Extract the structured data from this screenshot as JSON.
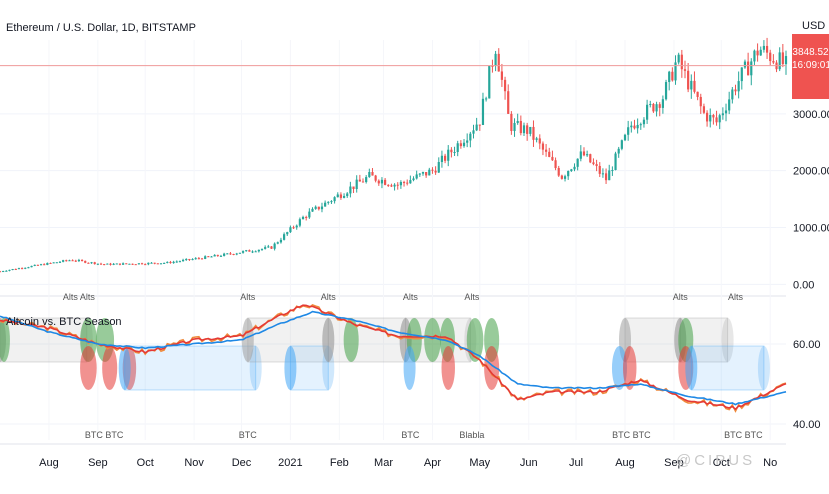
{
  "chart_title": "Ethereum / U.S. Dollar, 1D, BITSTAMP",
  "currency": "USD",
  "last_price": "3848.52",
  "countdown": "16:09:01",
  "watermark": "@CIPUS",
  "indicator_title": "Altcoin vs. BTC Season",
  "colors": {
    "up": "#26a69a",
    "down": "#ef5350",
    "price_line": "#ef9a9a",
    "alt_fill": "#43a047",
    "alt_red": "#e53935",
    "btc_fill": "#42a5f5",
    "neutral": "#9e9e9e",
    "line_blue": "#1e88e5",
    "line_red": "#e53935",
    "line_orange": "#ef8a3c"
  },
  "chart_data": [
    {
      "type": "candlestick",
      "title": "Ethereum / U.S. Dollar, 1D, BITSTAMP",
      "ylim": [
        -100,
        4300
      ],
      "y_ticks": [
        "0.00",
        "1000.00",
        "2000.00",
        "3000.00"
      ],
      "y_tick_values": [
        0,
        1000,
        2000,
        3000
      ],
      "x_ticks": [
        "Aug",
        "Sep",
        "Oct",
        "Nov",
        "Dec",
        "2021",
        "Feb",
        "Mar",
        "Apr",
        "May",
        "Jun",
        "Jul",
        "Aug",
        "Sep",
        "Oct",
        "No"
      ],
      "x_tick_dates": [
        "2020-08-01",
        "2020-09-01",
        "2020-10-01",
        "2020-11-01",
        "2020-12-01",
        "2021-01-01",
        "2021-02-01",
        "2021-03-01",
        "2021-04-01",
        "2021-05-01",
        "2021-06-01",
        "2021-07-01",
        "2021-08-01",
        "2021-09-01",
        "2021-10-01",
        "2021-11-01"
      ],
      "x_range": [
        "2020-07-01",
        "2021-11-11"
      ],
      "price_anchors": [
        {
          "date": "2020-07-01",
          "close": 230
        },
        {
          "date": "2020-08-15",
          "close": 430
        },
        {
          "date": "2020-09-05",
          "close": 350
        },
        {
          "date": "2020-10-15",
          "close": 380
        },
        {
          "date": "2020-11-20",
          "close": 520
        },
        {
          "date": "2020-12-20",
          "close": 650
        },
        {
          "date": "2021-01-10",
          "close": 1200
        },
        {
          "date": "2021-02-20",
          "close": 1900
        },
        {
          "date": "2021-03-10",
          "close": 1750
        },
        {
          "date": "2021-04-01",
          "close": 2000
        },
        {
          "date": "2021-04-15",
          "close": 2400
        },
        {
          "date": "2021-05-01",
          "close": 2900
        },
        {
          "date": "2021-05-11",
          "close": 4200
        },
        {
          "date": "2021-05-20",
          "close": 2800
        },
        {
          "date": "2021-06-01",
          "close": 2700
        },
        {
          "date": "2021-06-22",
          "close": 1900
        },
        {
          "date": "2021-07-05",
          "close": 2300
        },
        {
          "date": "2021-07-20",
          "close": 1850
        },
        {
          "date": "2021-08-05",
          "close": 2800
        },
        {
          "date": "2021-08-25",
          "close": 3300
        },
        {
          "date": "2021-09-03",
          "close": 3950
        },
        {
          "date": "2021-09-20",
          "close": 3000
        },
        {
          "date": "2021-09-28",
          "close": 2850
        },
        {
          "date": "2021-10-10",
          "close": 3500
        },
        {
          "date": "2021-10-25",
          "close": 4150
        },
        {
          "date": "2021-11-11",
          "close": 3848.52
        }
      ],
      "last_price": 3848.52,
      "top_labels": [
        "Alts Alts",
        "Alts",
        "Alts",
        "Alts",
        "Alts",
        "Alts",
        "Alts"
      ],
      "top_label_dates": [
        "2020-08-20",
        "2020-12-05",
        "2021-01-25",
        "2021-03-18",
        "2021-04-26",
        "2021-09-05",
        "2021-10-10"
      ]
    },
    {
      "type": "line",
      "title": "Altcoin vs. BTC Season",
      "ylim": [
        36,
        71
      ],
      "y_ticks": [
        "40.00",
        "60.00"
      ],
      "y_tick_values": [
        40,
        60
      ],
      "series": [],
      "blue_anchors": [
        {
          "date": "2020-07-01",
          "value": 67
        },
        {
          "date": "2020-08-01",
          "value": 63
        },
        {
          "date": "2020-09-01",
          "value": 60
        },
        {
          "date": "2020-10-01",
          "value": 59
        },
        {
          "date": "2020-11-01",
          "value": 60
        },
        {
          "date": "2020-12-01",
          "value": 61
        },
        {
          "date": "2020-12-25",
          "value": 65
        },
        {
          "date": "2021-01-15",
          "value": 68
        },
        {
          "date": "2021-02-10",
          "value": 66
        },
        {
          "date": "2021-03-10",
          "value": 63
        },
        {
          "date": "2021-04-10",
          "value": 61
        },
        {
          "date": "2021-05-01",
          "value": 57
        },
        {
          "date": "2021-05-25",
          "value": 50
        },
        {
          "date": "2021-06-15",
          "value": 49
        },
        {
          "date": "2021-07-15",
          "value": 49
        },
        {
          "date": "2021-08-10",
          "value": 50
        },
        {
          "date": "2021-09-10",
          "value": 47
        },
        {
          "date": "2021-10-10",
          "value": 45
        },
        {
          "date": "2021-11-11",
          "value": 48
        }
      ],
      "red_anchors": [
        {
          "date": "2020-07-01",
          "value": 66
        },
        {
          "date": "2020-08-01",
          "value": 64
        },
        {
          "date": "2020-09-01",
          "value": 60
        },
        {
          "date": "2020-10-01",
          "value": 58
        },
        {
          "date": "2020-11-01",
          "value": 61
        },
        {
          "date": "2020-12-01",
          "value": 62
        },
        {
          "date": "2020-12-25",
          "value": 67
        },
        {
          "date": "2021-01-10",
          "value": 70
        },
        {
          "date": "2021-02-10",
          "value": 65
        },
        {
          "date": "2021-03-10",
          "value": 62
        },
        {
          "date": "2021-04-10",
          "value": 62
        },
        {
          "date": "2021-05-01",
          "value": 56
        },
        {
          "date": "2021-05-25",
          "value": 46
        },
        {
          "date": "2021-06-15",
          "value": 48
        },
        {
          "date": "2021-07-15",
          "value": 48
        },
        {
          "date": "2021-08-10",
          "value": 51
        },
        {
          "date": "2021-09-10",
          "value": 46
        },
        {
          "date": "2021-10-10",
          "value": 44
        },
        {
          "date": "2021-11-11",
          "value": 50
        }
      ],
      "season_zones": [
        {
          "kind": "neutral",
          "start": "2020-07-01",
          "end": "2020-08-25",
          "level": "upper"
        },
        {
          "kind": "alt",
          "start": "2020-07-01",
          "end": "2020-07-06",
          "level": "upper"
        },
        {
          "kind": "alt",
          "start": "2020-08-22",
          "end": "2020-08-30",
          "level": "upper"
        },
        {
          "kind": "alt",
          "start": "2020-09-01",
          "end": "2020-09-10",
          "level": "upper"
        },
        {
          "kind": "altred",
          "start": "2020-08-22",
          "end": "2020-08-30",
          "level": "lower"
        },
        {
          "kind": "altred",
          "start": "2020-09-05",
          "end": "2020-09-12",
          "level": "lower"
        },
        {
          "kind": "altred",
          "start": "2020-09-18",
          "end": "2020-09-24",
          "level": "lower"
        },
        {
          "kind": "btc",
          "start": "2020-09-18",
          "end": "2020-12-10",
          "level": "lower"
        },
        {
          "kind": "neutral",
          "start": "2020-12-05",
          "end": "2021-01-25",
          "level": "upper"
        },
        {
          "kind": "btc",
          "start": "2021-01-01",
          "end": "2021-01-25",
          "level": "lower"
        },
        {
          "kind": "neutral",
          "start": "2021-01-25",
          "end": "2021-03-15",
          "level": "upper"
        },
        {
          "kind": "alt",
          "start": "2021-02-05",
          "end": "2021-02-12",
          "level": "upper"
        },
        {
          "kind": "neutral",
          "start": "2021-03-15",
          "end": "2021-04-25",
          "level": "upper"
        },
        {
          "kind": "alt",
          "start": "2021-03-17",
          "end": "2021-03-24",
          "level": "upper"
        },
        {
          "kind": "btc",
          "start": "2021-03-15",
          "end": "2021-03-20",
          "level": "lower"
        },
        {
          "kind": "alt",
          "start": "2021-03-28",
          "end": "2021-04-05",
          "level": "upper"
        },
        {
          "kind": "alt",
          "start": "2021-04-07",
          "end": "2021-04-14",
          "level": "upper"
        },
        {
          "kind": "altred",
          "start": "2021-04-08",
          "end": "2021-04-14",
          "level": "lower"
        },
        {
          "kind": "alt",
          "start": "2021-04-24",
          "end": "2021-05-02",
          "level": "upper"
        },
        {
          "kind": "alt",
          "start": "2021-05-05",
          "end": "2021-05-12",
          "level": "upper"
        },
        {
          "kind": "altred",
          "start": "2021-05-05",
          "end": "2021-05-12",
          "level": "lower"
        },
        {
          "kind": "neutral",
          "start": "2021-08-01",
          "end": "2021-09-05",
          "level": "upper"
        },
        {
          "kind": "neutral",
          "start": "2021-09-05",
          "end": "2021-10-05",
          "level": "upper"
        },
        {
          "kind": "alt",
          "start": "2021-09-05",
          "end": "2021-09-12",
          "level": "upper"
        },
        {
          "kind": "btc",
          "start": "2021-07-25",
          "end": "2021-08-01",
          "level": "lower"
        },
        {
          "kind": "altred",
          "start": "2021-08-01",
          "end": "2021-08-07",
          "level": "lower"
        },
        {
          "kind": "altred",
          "start": "2021-09-05",
          "end": "2021-09-12",
          "level": "lower"
        },
        {
          "kind": "btc",
          "start": "2021-09-12",
          "end": "2021-10-28",
          "level": "lower"
        }
      ],
      "bottom_labels": [
        "BTC BTC",
        "BTC",
        "BTC",
        "Blabla",
        "BTC BTC",
        "BTC BTC"
      ],
      "bottom_label_dates": [
        "2020-09-05",
        "2020-12-05",
        "2021-03-18",
        "2021-04-26",
        "2021-08-05",
        "2021-10-15"
      ]
    }
  ]
}
